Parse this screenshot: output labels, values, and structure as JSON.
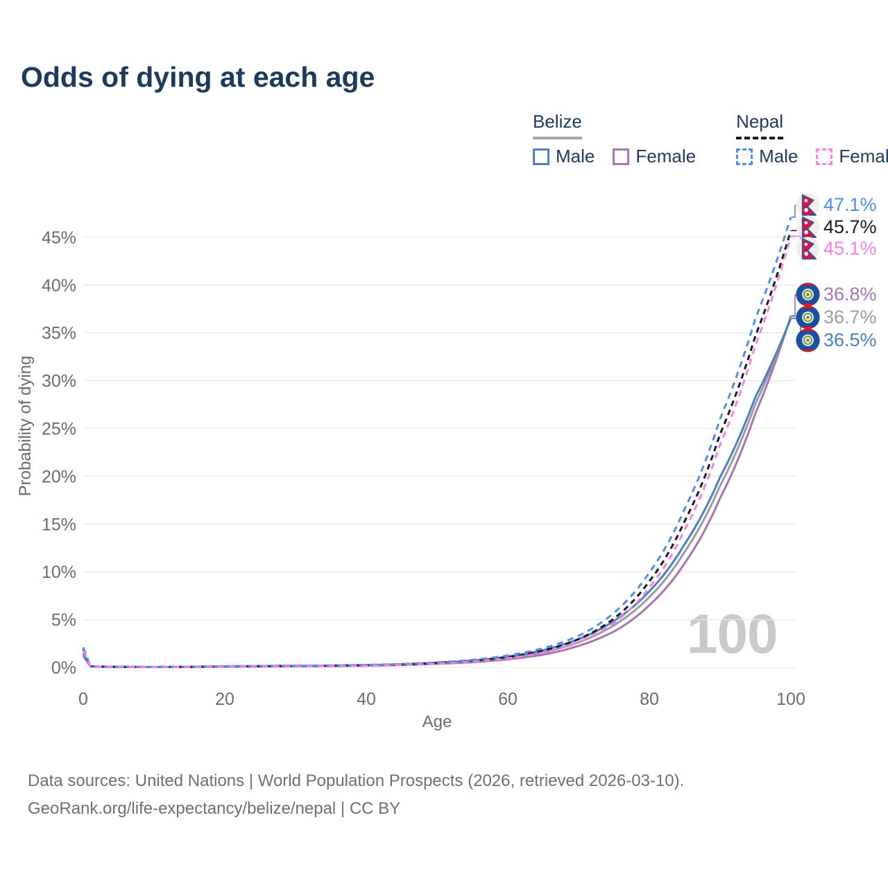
{
  "page": {
    "title": "Odds of dying at each age"
  },
  "legend": {
    "groups": [
      {
        "label": "Belize",
        "line_style": "solid",
        "line_color": "#a6a6a6",
        "items": [
          {
            "label": "Male",
            "color": "#4d80c4",
            "style": "solid"
          },
          {
            "label": "Female",
            "color": "#ad74b5",
            "style": "solid"
          }
        ]
      },
      {
        "label": "Nepal",
        "line_style": "dashed",
        "line_color": "#1a1a1a",
        "items": [
          {
            "label": "Male",
            "color": "#4d8df5",
            "style": "dashed"
          },
          {
            "label": "Female",
            "color": "#fb86ea",
            "style": "dashed"
          }
        ]
      }
    ]
  },
  "chart_data": {
    "type": "line",
    "title": "Odds of dying at each age",
    "xlabel": "Age",
    "ylabel": "Probability of dying",
    "xlim": [
      0,
      100
    ],
    "ylim": [
      0,
      48
    ],
    "xticks": [
      0,
      20,
      40,
      60,
      80,
      100
    ],
    "yticks": [
      0,
      5,
      10,
      15,
      20,
      25,
      30,
      35,
      40,
      45
    ],
    "ytick_labels": [
      "0%",
      "5%",
      "10%",
      "15%",
      "20%",
      "25%",
      "30%",
      "35%",
      "40%",
      "45%"
    ],
    "grid": "horizontal",
    "legend_position": "top-right",
    "hover_age_indicator": "100",
    "x": [
      0,
      1,
      2,
      5,
      10,
      15,
      20,
      25,
      30,
      35,
      40,
      45,
      50,
      55,
      60,
      65,
      70,
      75,
      80,
      85,
      90,
      95,
      100
    ],
    "series": [
      {
        "name": "Belize Female",
        "country": "Belize",
        "group": "Female",
        "style": "solid",
        "color": "#a973b3",
        "values": [
          1.2,
          0.1,
          0.07,
          0.04,
          0.033,
          0.04,
          0.06,
          0.08,
          0.1,
          0.13,
          0.18,
          0.25,
          0.37,
          0.54,
          0.84,
          1.33,
          2.25,
          3.75,
          6.5,
          10.9,
          17.7,
          26.6,
          36.8
        ]
      },
      {
        "name": "Belize Total",
        "country": "Belize",
        "group": "Total",
        "style": "solid",
        "color": "#9b9b9b",
        "values": [
          1.35,
          0.11,
          0.075,
          0.045,
          0.037,
          0.05,
          0.09,
          0.12,
          0.14,
          0.17,
          0.22,
          0.3,
          0.43,
          0.63,
          0.98,
          1.57,
          2.62,
          4.4,
          7.35,
          12.1,
          19.0,
          27.6,
          36.7
        ]
      },
      {
        "name": "Belize Male",
        "country": "Belize",
        "group": "Male",
        "style": "solid",
        "color": "#4a7fc1",
        "values": [
          1.45,
          0.12,
          0.08,
          0.05,
          0.04,
          0.06,
          0.11,
          0.14,
          0.16,
          0.19,
          0.25,
          0.33,
          0.48,
          0.72,
          1.12,
          1.8,
          2.95,
          4.85,
          7.95,
          12.9,
          19.9,
          28.3,
          36.5
        ]
      },
      {
        "name": "Nepal Total",
        "country": "Nepal",
        "group": "Total",
        "style": "dashed",
        "color": "#1a1a1a",
        "values": [
          1.9,
          0.14,
          0.09,
          0.055,
          0.045,
          0.06,
          0.1,
          0.13,
          0.15,
          0.18,
          0.23,
          0.31,
          0.46,
          0.69,
          1.08,
          1.75,
          2.95,
          5.1,
          9.0,
          15.3,
          24.4,
          34.7,
          45.7
        ]
      },
      {
        "name": "Nepal Male",
        "country": "Nepal",
        "group": "Male",
        "style": "dashed",
        "color": "#4d8df2",
        "values": [
          2.1,
          0.15,
          0.1,
          0.06,
          0.05,
          0.07,
          0.12,
          0.15,
          0.17,
          0.2,
          0.26,
          0.35,
          0.52,
          0.78,
          1.25,
          2.0,
          3.3,
          5.7,
          9.9,
          16.6,
          26.0,
          36.5,
          47.1
        ]
      },
      {
        "name": "Nepal Female",
        "country": "Nepal",
        "group": "Female",
        "style": "dashed",
        "color": "#f97de9",
        "values": [
          1.75,
          0.13,
          0.085,
          0.05,
          0.04,
          0.05,
          0.08,
          0.1,
          0.12,
          0.15,
          0.2,
          0.27,
          0.4,
          0.6,
          0.95,
          1.55,
          2.65,
          4.65,
          8.35,
          14.4,
          23.3,
          33.7,
          45.1
        ]
      }
    ]
  },
  "end_labels": [
    {
      "value": "47.1%",
      "series": "Nepal Male",
      "color": "#4a8df2",
      "flag": "nepal-flag-icon",
      "end_pct": 47.1
    },
    {
      "value": "45.7%",
      "series": "Nepal Total",
      "color": "#1a1a1a",
      "flag": "nepal-flag-icon",
      "end_pct": 45.7
    },
    {
      "value": "45.1%",
      "series": "Nepal Female",
      "color": "#f97de9",
      "flag": "nepal-flag-icon",
      "end_pct": 45.1
    },
    {
      "value": "36.8%",
      "series": "Belize Female",
      "color": "#ab74b4",
      "flag": "belize-flag-icon",
      "end_pct": 36.8
    },
    {
      "value": "36.7%",
      "series": "Belize Total",
      "color": "#9e9e9e",
      "flag": "belize-flag-icon",
      "end_pct": 36.7
    },
    {
      "value": "36.5%",
      "series": "Belize Male",
      "color": "#4a7fc1",
      "flag": "belize-flag-icon",
      "end_pct": 36.5
    }
  ],
  "watermark": "100",
  "footer": {
    "line1": "Data sources: United Nations | World Population Prospects (2026, retrieved 2026-03-10).",
    "line2": "GeoRank.org/life-expectancy/belize/nepal | CC BY"
  },
  "colors": {
    "title_text": "#1c3a5c",
    "legend_text": "#1e3a5f",
    "axis_text": "#6b6b6b",
    "gridline": "#e9e9e9",
    "footer_text": "#6f6f6f",
    "watermark": "#c9c9c9",
    "nepal_flag_crimson": "#d8153c",
    "nepal_flag_blue": "#2b5ba8",
    "belize_flag_blue": "#1b4fa0",
    "belize_flag_red": "#cf1b2b"
  }
}
